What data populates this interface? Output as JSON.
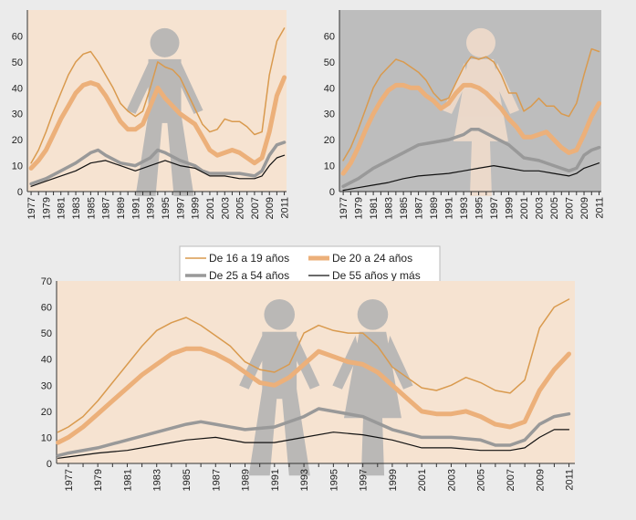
{
  "legend": [
    {
      "label": "De 16 a 19 años",
      "color": "#d99a4e",
      "width": 1.5
    },
    {
      "label": "De 20 a 24 años",
      "color": "#ecb07a",
      "width": 5
    },
    {
      "label": "De 25 a 54 años",
      "color": "#999999",
      "width": 3.5
    },
    {
      "label": "De 55 años y más",
      "color": "#111111",
      "width": 1.2
    }
  ],
  "chart_data": [
    {
      "type": "line",
      "title": "",
      "figure": "male",
      "background": "#f6e3d1",
      "xlim": [
        1976.5,
        2011.3
      ],
      "ylim": [
        0,
        70
      ],
      "yticks": [
        0,
        10,
        20,
        30,
        40,
        50,
        60
      ],
      "xticks": [
        1977,
        1979,
        1981,
        1983,
        1985,
        1987,
        1989,
        1991,
        1993,
        1995,
        1997,
        1999,
        2001,
        2003,
        2005,
        2007,
        2009,
        2011
      ],
      "series": [
        {
          "name": "De 16 a 19 años",
          "x": [
            1977,
            1978,
            1979,
            1980,
            1981,
            1982,
            1983,
            1984,
            1985,
            1986,
            1987,
            1988,
            1989,
            1990,
            1991,
            1992,
            1993,
            1994,
            1995,
            1996,
            1997,
            1998,
            1999,
            2000,
            2001,
            2002,
            2003,
            2004,
            2005,
            2006,
            2007,
            2008,
            2009,
            2010,
            2011
          ],
          "y": [
            11,
            16,
            23,
            31,
            38,
            45,
            50,
            53,
            54,
            50,
            45,
            40,
            34,
            31,
            29,
            31,
            40,
            50,
            48,
            47,
            44,
            38,
            32,
            26,
            23,
            24,
            28,
            27,
            27,
            25,
            22,
            23,
            45,
            58,
            63
          ]
        },
        {
          "name": "De 20 a 24 años",
          "x": [
            1977,
            1978,
            1979,
            1980,
            1981,
            1982,
            1983,
            1984,
            1985,
            1986,
            1987,
            1988,
            1989,
            1990,
            1991,
            1992,
            1993,
            1994,
            1995,
            1996,
            1997,
            1998,
            1999,
            2000,
            2001,
            2002,
            2003,
            2004,
            2005,
            2006,
            2007,
            2008,
            2009,
            2010,
            2011
          ],
          "y": [
            9,
            12,
            16,
            22,
            28,
            33,
            38,
            41,
            42,
            41,
            37,
            32,
            27,
            24,
            24,
            26,
            33,
            40,
            36,
            33,
            30,
            28,
            26,
            21,
            16,
            14,
            15,
            16,
            15,
            13,
            11,
            13,
            23,
            37,
            44
          ]
        },
        {
          "name": "De 25 a 54 años",
          "x": [
            1977,
            1979,
            1981,
            1983,
            1985,
            1986,
            1987,
            1989,
            1991,
            1993,
            1994,
            1995,
            1997,
            1999,
            2000,
            2001,
            2003,
            2005,
            2007,
            2008,
            2009,
            2010,
            2011
          ],
          "y": [
            3,
            5,
            8,
            11,
            15,
            16,
            14,
            11,
            10,
            13,
            16,
            15,
            12,
            10,
            8,
            7,
            7,
            7,
            6,
            8,
            14,
            18,
            19
          ]
        },
        {
          "name": "De 55 años y más",
          "x": [
            1977,
            1979,
            1981,
            1983,
            1985,
            1987,
            1989,
            1991,
            1993,
            1995,
            1997,
            1999,
            2001,
            2003,
            2005,
            2007,
            2008,
            2009,
            2010,
            2011
          ],
          "y": [
            2,
            4,
            6,
            8,
            11,
            12,
            10,
            8,
            10,
            12,
            10,
            9,
            6,
            6,
            5,
            5,
            6,
            10,
            13,
            14
          ]
        }
      ]
    },
    {
      "type": "line",
      "title": "",
      "figure": "female",
      "background": "#bdbdbd",
      "xlim": [
        1976.5,
        2011.3
      ],
      "ylim": [
        0,
        70
      ],
      "yticks": [
        0,
        10,
        20,
        30,
        40,
        50,
        60
      ],
      "xticks": [
        1977,
        1979,
        1981,
        1983,
        1985,
        1987,
        1989,
        1991,
        1993,
        1995,
        1997,
        1999,
        2001,
        2003,
        2005,
        2007,
        2009,
        2011
      ],
      "series": [
        {
          "name": "De 16 a 19 años",
          "x": [
            1977,
            1978,
            1979,
            1980,
            1981,
            1982,
            1983,
            1984,
            1985,
            1986,
            1987,
            1988,
            1989,
            1990,
            1991,
            1992,
            1993,
            1994,
            1995,
            1996,
            1997,
            1998,
            1999,
            2000,
            2001,
            2002,
            2003,
            2004,
            2005,
            2006,
            2007,
            2008,
            2009,
            2010,
            2011
          ],
          "y": [
            12,
            17,
            24,
            32,
            40,
            45,
            48,
            51,
            50,
            48,
            46,
            43,
            38,
            35,
            36,
            42,
            48,
            52,
            51,
            52,
            50,
            45,
            38,
            38,
            31,
            33,
            36,
            33,
            33,
            30,
            29,
            34,
            45,
            55,
            54
          ]
        },
        {
          "name": "De 20 a 24 años",
          "x": [
            1977,
            1978,
            1979,
            1980,
            1981,
            1982,
            1983,
            1984,
            1985,
            1986,
            1987,
            1988,
            1989,
            1990,
            1991,
            1992,
            1993,
            1994,
            1995,
            1996,
            1997,
            1998,
            1999,
            2000,
            2001,
            2002,
            2003,
            2004,
            2005,
            2006,
            2007,
            2008,
            2009,
            2010,
            2011
          ],
          "y": [
            7,
            11,
            17,
            24,
            30,
            35,
            39,
            41,
            41,
            40,
            40,
            37,
            35,
            32,
            34,
            38,
            41,
            41,
            40,
            38,
            35,
            32,
            28,
            25,
            21,
            21,
            22,
            23,
            20,
            17,
            15,
            16,
            22,
            29,
            34
          ]
        },
        {
          "name": "De 25 a 54 años",
          "x": [
            1977,
            1979,
            1981,
            1983,
            1985,
            1987,
            1989,
            1991,
            1993,
            1994,
            1995,
            1997,
            1999,
            2001,
            2003,
            2005,
            2007,
            2008,
            2009,
            2010,
            2011
          ],
          "y": [
            2,
            5,
            9,
            12,
            15,
            18,
            19,
            20,
            22,
            24,
            24,
            21,
            18,
            13,
            12,
            10,
            8,
            9,
            14,
            16,
            17
          ]
        },
        {
          "name": "De 55 años y más",
          "x": [
            1977,
            1979,
            1981,
            1983,
            1985,
            1987,
            1989,
            1991,
            1993,
            1995,
            1997,
            1999,
            2001,
            2003,
            2005,
            2007,
            2008,
            2009,
            2010,
            2011
          ],
          "y": [
            0.5,
            1.5,
            2.5,
            3.5,
            5,
            6,
            6.5,
            7,
            8,
            9,
            10,
            9,
            8,
            8,
            7,
            6,
            7,
            9,
            10,
            11
          ]
        }
      ]
    },
    {
      "type": "line",
      "title": "",
      "figure": "couple",
      "background": "#f6e3d1",
      "xlim": [
        1976.2,
        2011.4
      ],
      "ylim": [
        0,
        70
      ],
      "yticks": [
        0,
        10,
        20,
        30,
        40,
        50,
        60,
        70
      ],
      "xticks": [
        1977,
        1979,
        1981,
        1983,
        1985,
        1987,
        1989,
        1991,
        1993,
        1995,
        1997,
        1999,
        2001,
        2003,
        2005,
        2007,
        2009,
        2011
      ],
      "series": [
        {
          "name": "De 16 a 19 años",
          "x": [
            1976.3,
            1977,
            1978,
            1979,
            1980,
            1981,
            1982,
            1983,
            1984,
            1985,
            1986,
            1987,
            1988,
            1989,
            1990,
            1991,
            1992,
            1993,
            1994,
            1995,
            1996,
            1997,
            1998,
            1999,
            2000,
            2001,
            2002,
            2003,
            2004,
            2005,
            2006,
            2007,
            2008,
            2009,
            2010,
            2011
          ],
          "y": [
            12,
            14,
            18,
            24,
            31,
            38,
            45,
            51,
            54,
            56,
            53,
            49,
            45,
            39,
            36,
            35,
            38,
            50,
            53,
            51,
            50,
            50,
            45,
            37,
            33,
            29,
            28,
            30,
            33,
            31,
            28,
            27,
            32,
            52,
            60,
            63
          ]
        },
        {
          "name": "De 20 a 24 años",
          "x": [
            1976.3,
            1977,
            1978,
            1979,
            1980,
            1981,
            1982,
            1983,
            1984,
            1985,
            1986,
            1987,
            1988,
            1989,
            1990,
            1991,
            1992,
            1993,
            1994,
            1995,
            1996,
            1997,
            1998,
            1999,
            2000,
            2001,
            2002,
            2003,
            2004,
            2005,
            2006,
            2007,
            2008,
            2009,
            2010,
            2011
          ],
          "y": [
            8,
            10,
            14,
            19,
            24,
            29,
            34,
            38,
            42,
            44,
            44,
            42,
            39,
            35,
            31,
            30,
            33,
            38,
            43,
            41,
            39,
            38,
            35,
            30,
            25,
            20,
            19,
            19,
            20,
            18,
            15,
            14,
            16,
            28,
            36,
            42
          ]
        },
        {
          "name": "De 25 a 54 años",
          "x": [
            1976.3,
            1977,
            1979,
            1981,
            1983,
            1985,
            1986,
            1987,
            1989,
            1991,
            1993,
            1994,
            1995,
            1997,
            1999,
            2001,
            2003,
            2005,
            2006,
            2007,
            2008,
            2009,
            2010,
            2011
          ],
          "y": [
            3,
            4,
            6,
            9,
            12,
            15,
            16,
            15,
            13,
            14,
            18,
            21,
            20,
            18,
            13,
            10,
            10,
            9,
            7,
            7,
            9,
            15,
            18,
            19
          ]
        },
        {
          "name": "De 55 años y más",
          "x": [
            1976.3,
            1977,
            1979,
            1981,
            1983,
            1985,
            1987,
            1989,
            1991,
            1993,
            1995,
            1997,
            1999,
            2001,
            2003,
            2005,
            2007,
            2008,
            2009,
            2010,
            2011
          ],
          "y": [
            2,
            2.5,
            4,
            5,
            7,
            9,
            10,
            8,
            8,
            10,
            12,
            11,
            9,
            6,
            6,
            5,
            5,
            6,
            10,
            13,
            13
          ]
        }
      ]
    }
  ]
}
